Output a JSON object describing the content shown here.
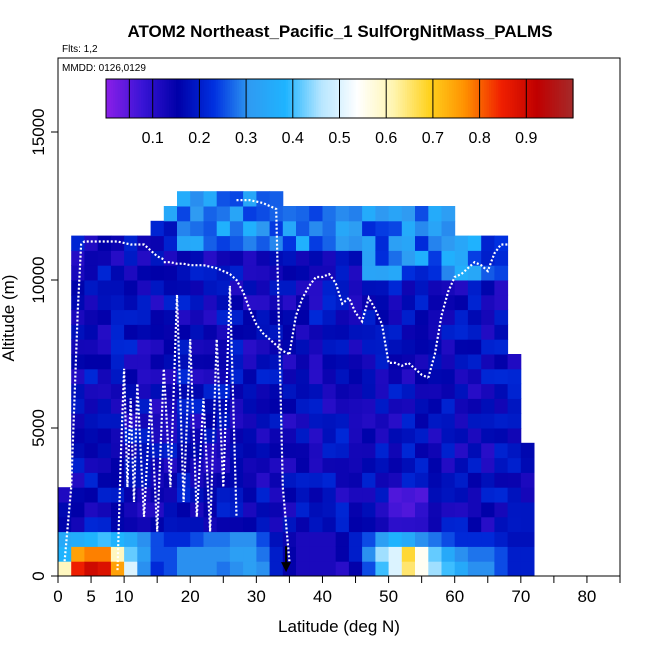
{
  "chart_data": {
    "type": "heatmap",
    "title": "ATOM2 Northeast_Pacific_1 SulfOrgNitMass_PALMS",
    "annotations": [
      "Flts: 1,2",
      "MMDD: 0126,0129"
    ],
    "xlabel": "Latitude (deg N)",
    "ylabel": "Altitude (m)",
    "xlim": [
      0,
      85
    ],
    "ylim": [
      0,
      17500
    ],
    "x_ticks": [
      0,
      5,
      10,
      20,
      30,
      40,
      50,
      60,
      70,
      80
    ],
    "x_tick_labels": [
      "0",
      "5",
      "10",
      "20",
      "30",
      "40",
      "50",
      "60",
      "70",
      "80"
    ],
    "y_ticks": [
      0,
      5000,
      10000,
      15000
    ],
    "y_tick_labels": [
      "0",
      "5000",
      "10000",
      "15000"
    ],
    "colorbar": {
      "range": [
        0,
        1
      ],
      "tick_values": [
        0.1,
        0.2,
        0.3,
        0.4,
        0.5,
        0.6,
        0.7,
        0.8,
        0.9
      ],
      "tick_labels": [
        "0.1",
        "0.2",
        "0.3",
        "0.4",
        "0.5",
        "0.6",
        "0.7",
        "0.8",
        "0.9"
      ],
      "colors": [
        "#8b1fe8",
        "#3a14d6",
        "#0000a8",
        "#0030e0",
        "#2f9bf2",
        "#1eb4ff",
        "#b7e6ff",
        "#ffffff",
        "#fff5b0",
        "#ffd21e",
        "#ff9000",
        "#f02000",
        "#c00000",
        "#a52a2a"
      ],
      "placement": "top, inside plot"
    },
    "lat_edges": [
      0,
      2,
      4,
      6,
      8,
      10,
      12,
      14,
      16,
      18,
      20,
      22,
      24,
      26,
      28,
      30,
      32,
      34,
      36,
      38,
      40,
      42,
      44,
      46,
      48,
      50,
      52,
      54,
      56,
      58,
      60,
      62,
      64,
      66,
      68,
      70,
      72
    ],
    "alt_bin_m": 500,
    "column_top_m": [
      3000,
      11500,
      11500,
      11500,
      11500,
      11500,
      11500,
      12000,
      12500,
      13000,
      13000,
      13000,
      13000,
      13000,
      13000,
      13000,
      13000,
      12500,
      12500,
      12500,
      12500,
      12500,
      12500,
      12500,
      12500,
      12500,
      12500,
      12500,
      12500,
      12500,
      11500,
      11500,
      11500,
      11500,
      7500,
      4500
    ],
    "surface_values": [
      [
        0.6,
        0.85,
        0.9,
        0.88,
        0.75,
        0.5,
        0.3,
        0.22,
        0.25,
        0.3,
        0.3,
        0.3,
        0.28,
        0.3,
        0.32,
        0.3,
        0.2,
        0.15,
        0.12,
        0.12,
        0.12,
        0.1,
        0.15,
        0.25,
        0.4,
        0.5,
        0.65,
        0.55,
        0.45,
        0.4,
        0.35,
        0.3,
        0.3,
        0.25,
        0.2,
        0.2
      ],
      [
        0.38,
        0.75,
        0.78,
        0.78,
        0.6,
        0.42,
        0.32,
        0.25,
        0.25,
        0.3,
        0.3,
        0.3,
        0.3,
        0.32,
        0.32,
        0.28,
        0.2,
        0.15,
        0.12,
        0.12,
        0.12,
        0.15,
        0.2,
        0.3,
        0.45,
        0.5,
        0.68,
        0.55,
        0.42,
        0.35,
        0.3,
        0.28,
        0.28,
        0.25,
        0.2,
        0.2
      ],
      [
        0.35,
        0.36,
        0.38,
        0.4,
        0.38,
        0.35,
        0.3,
        0.25,
        0.22,
        0.22,
        0.25,
        0.28,
        0.28,
        0.3,
        0.3,
        0.25,
        0.18,
        0.14,
        0.12,
        0.12,
        0.12,
        0.15,
        0.2,
        0.25,
        0.32,
        0.38,
        0.35,
        0.3,
        0.28,
        0.25,
        0.22,
        0.22,
        0.22,
        0.2,
        0.18,
        0.18
      ]
    ],
    "flight_tracks": [
      {
        "lat": [
          1,
          2,
          2.5,
          3,
          3.5,
          4,
          5,
          7,
          9,
          11,
          12,
          13,
          14,
          15,
          16
        ],
        "alt_m": [
          500,
          3000,
          6000,
          9000,
          11200,
          11300,
          11300,
          11300,
          11300,
          11200,
          11200,
          11200,
          11000,
          10800,
          10700
        ]
      },
      {
        "lat": [
          16,
          17,
          18,
          19,
          20,
          21,
          22,
          23,
          24,
          25,
          26,
          27,
          28,
          29,
          30,
          31,
          32,
          33,
          34,
          35
        ],
        "alt_m": [
          10600,
          10600,
          10550,
          10550,
          10500,
          10500,
          10500,
          10450,
          10400,
          10300,
          10200,
          10000,
          9600,
          9000,
          8500,
          8200,
          8000,
          7800,
          7600,
          7500
        ]
      },
      {
        "lat": [
          35,
          36,
          37,
          38,
          39,
          40,
          41,
          42,
          43,
          44,
          45,
          46,
          47,
          48,
          49,
          50,
          51,
          52,
          53,
          54,
          55,
          56
        ],
        "alt_m": [
          7500,
          8800,
          9400,
          9800,
          10100,
          10100,
          10200,
          9900,
          9200,
          9400,
          8900,
          8600,
          9400,
          9000,
          8500,
          7200,
          7200,
          7100,
          7200,
          7000,
          6800,
          6700
        ]
      },
      {
        "lat": [
          56,
          57,
          58,
          59,
          60,
          61,
          62,
          63,
          64,
          65,
          66,
          67,
          68,
          69,
          70,
          71
        ],
        "alt_m": [
          6700,
          7500,
          8800,
          9600,
          10100,
          10200,
          10400,
          10600,
          10500,
          10300,
          10900,
          11200,
          11200,
          11200,
          9000,
          4500
        ]
      },
      {
        "lat": [
          27,
          28,
          29,
          30,
          31,
          32,
          33,
          34,
          35
        ],
        "alt_m": [
          12700,
          12700,
          12700,
          12650,
          12600,
          12500,
          12400,
          3000,
          500
        ]
      },
      {
        "lat": [
          9,
          9.5,
          10,
          10.5,
          11,
          11.5,
          12,
          13,
          14,
          15,
          16,
          17,
          18,
          19,
          20,
          21,
          22,
          23,
          24,
          25,
          26,
          27
        ],
        "alt_m": [
          200,
          4000,
          7000,
          3000,
          6000,
          2500,
          6500,
          2000,
          6000,
          1500,
          7000,
          3000,
          9500,
          2500,
          8000,
          2000,
          6000,
          1500,
          8000,
          3000,
          9800,
          2000
        ]
      }
    ],
    "marker": {
      "lat": 34.5,
      "alt_m": 400,
      "shape": "down-arrow"
    },
    "grid": false
  }
}
